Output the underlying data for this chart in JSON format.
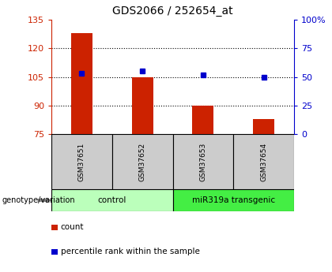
{
  "title": "GDS2066 / 252654_at",
  "samples": [
    "GSM37651",
    "GSM37652",
    "GSM37653",
    "GSM37654"
  ],
  "bar_values": [
    128,
    105,
    90,
    83
  ],
  "dot_values": [
    107,
    108,
    106,
    105
  ],
  "ylim_left": [
    75,
    135
  ],
  "ylim_right": [
    0,
    100
  ],
  "yticks_left": [
    75,
    90,
    105,
    120,
    135
  ],
  "yticks_right": [
    0,
    25,
    50,
    75,
    100
  ],
  "ytick_labels_right": [
    "0",
    "25",
    "50",
    "75",
    "100%"
  ],
  "grid_lines": [
    90,
    105,
    120
  ],
  "bar_color": "#cc2200",
  "dot_color": "#0000cc",
  "bar_bottom": 75,
  "groups": [
    {
      "label": "control",
      "indices": [
        0,
        1
      ],
      "color": "#bbffbb"
    },
    {
      "label": "miR319a transgenic",
      "indices": [
        2,
        3
      ],
      "color": "#44ee44"
    }
  ],
  "genotype_label": "genotype/variation",
  "legend_bar_label": "count",
  "legend_dot_label": "percentile rank within the sample",
  "left_axis_color": "#cc2200",
  "right_axis_color": "#0000cc",
  "sample_bg_color": "#cccccc",
  "bar_width": 0.35,
  "dot_size": 5
}
